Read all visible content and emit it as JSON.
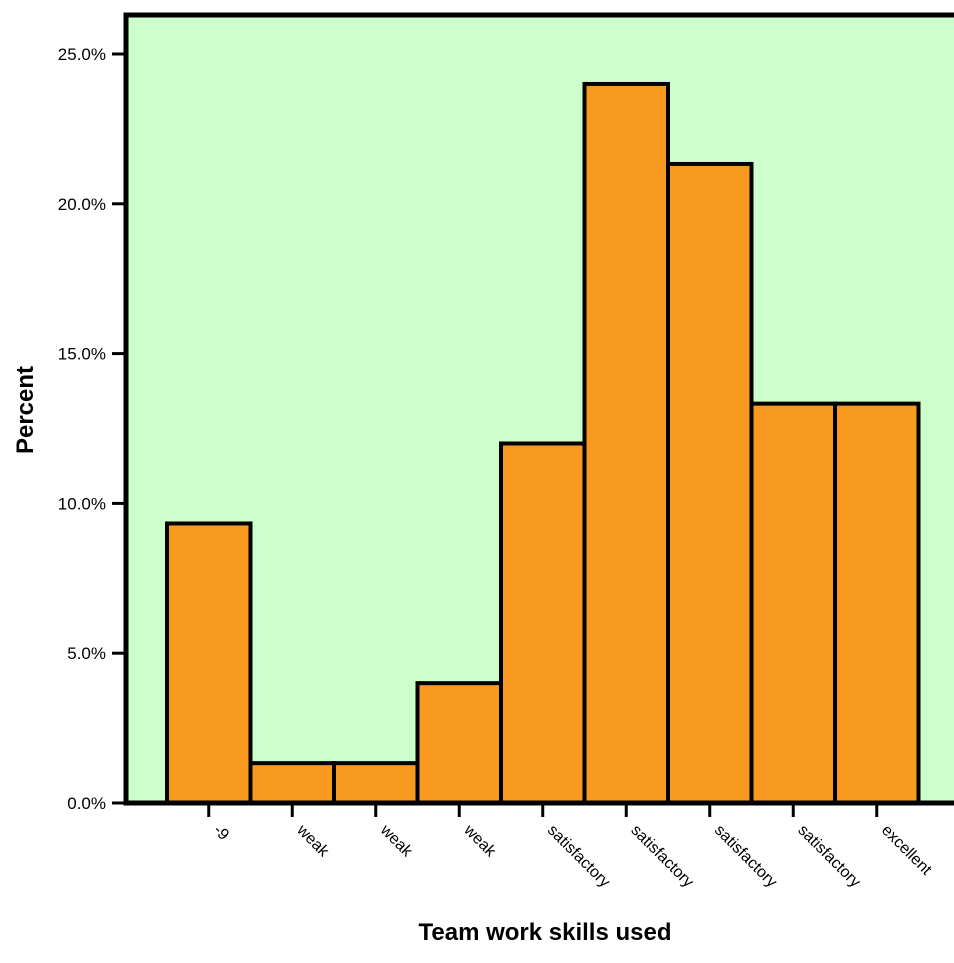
{
  "chart_data": {
    "type": "bar",
    "title": "",
    "xlabel": "Team work skills used",
    "ylabel": "Percent",
    "categories": [
      "-9",
      "weak",
      "weak",
      "weak",
      "satisfactory",
      "satisfactory",
      "satisfactory",
      "satisfactory",
      "excellent"
    ],
    "values": [
      9.33,
      1.33,
      1.33,
      4.0,
      12.0,
      24.0,
      21.33,
      13.33,
      13.33
    ],
    "ylim": [
      0,
      25
    ],
    "yticks": [
      0,
      5,
      10,
      15,
      20,
      25
    ],
    "ytick_labels": [
      "0.0%",
      "5.0%",
      "10.0%",
      "15.0%",
      "20.0%",
      "25.0%"
    ],
    "grid": false,
    "legend": "none",
    "colors": {
      "plot_background": "#ccffcc",
      "bar_fill": "#f89a20",
      "bar_stroke": "#000000",
      "axis": "#000000"
    }
  }
}
